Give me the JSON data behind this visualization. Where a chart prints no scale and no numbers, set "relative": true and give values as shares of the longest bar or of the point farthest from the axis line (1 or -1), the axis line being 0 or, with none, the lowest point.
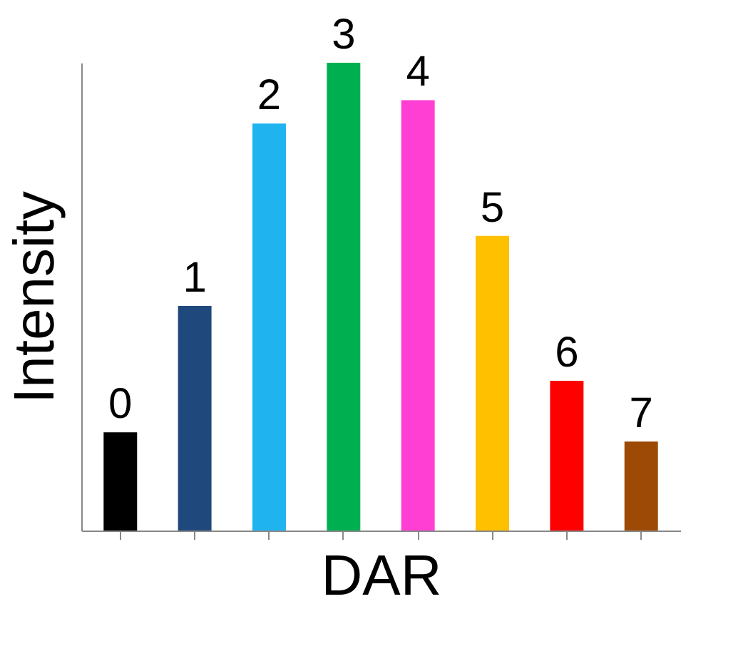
{
  "chart_data": {
    "type": "bar",
    "xlabel": "DAR",
    "ylabel": "Intensity",
    "relative": true,
    "tick_labels": false,
    "grid": false,
    "categories": [
      "0",
      "1",
      "2",
      "3",
      "4",
      "5",
      "6",
      "7"
    ],
    "values": [
      0.21,
      0.48,
      0.87,
      1,
      0.92,
      0.63,
      0.32,
      0.19
    ],
    "colors": [
      "#000000",
      "#1f497d",
      "#1fb4f0",
      "#00b050",
      "#ff3fd3",
      "#ffc000",
      "#ff0000",
      "#9c4a06"
    ]
  }
}
